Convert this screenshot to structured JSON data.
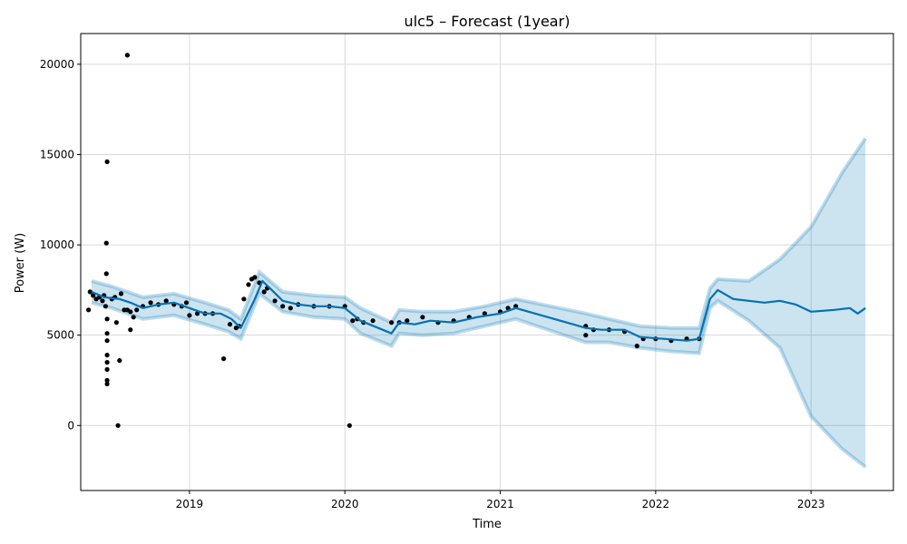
{
  "chart_data": {
    "type": "line",
    "title": "ulc5 – Forecast (1year)",
    "xlabel": "Time",
    "ylabel": "Power (W)",
    "xlim": [
      2018.3,
      2023.53
    ],
    "ylim": [
      -3600,
      21700
    ],
    "x_ticks": [
      {
        "value": 2019,
        "label": "2019"
      },
      {
        "value": 2020,
        "label": "2020"
      },
      {
        "value": 2021,
        "label": "2021"
      },
      {
        "value": 2022,
        "label": "2022"
      },
      {
        "value": 2023,
        "label": "2023"
      }
    ],
    "y_ticks": [
      {
        "value": 0,
        "label": "0"
      },
      {
        "value": 5000,
        "label": "5000"
      },
      {
        "value": 10000,
        "label": "10000"
      },
      {
        "value": 15000,
        "label": "15000"
      },
      {
        "value": 20000,
        "label": "20000"
      }
    ],
    "grid": true,
    "colors": {
      "forecast": "#0072B2",
      "interval": "#0072B2",
      "observed": "#000000",
      "grid": "#d9d9d9"
    },
    "series": [
      {
        "kind": "line",
        "points": [
          [
            2018.37,
            7400
          ],
          [
            2018.45,
            7100
          ],
          [
            2018.55,
            7000
          ],
          [
            2018.62,
            6800
          ],
          [
            2018.7,
            6500
          ],
          [
            2018.8,
            6700
          ],
          [
            2018.9,
            6800
          ],
          [
            2019.0,
            6500
          ],
          [
            2019.1,
            6200
          ],
          [
            2019.2,
            6200
          ],
          [
            2019.27,
            5900
          ],
          [
            2019.33,
            5400
          ],
          [
            2019.42,
            7000
          ],
          [
            2019.47,
            8000
          ],
          [
            2019.53,
            7500
          ],
          [
            2019.6,
            6900
          ],
          [
            2019.7,
            6700
          ],
          [
            2019.8,
            6600
          ],
          [
            2019.9,
            6600
          ],
          [
            2020.0,
            6500
          ],
          [
            2020.1,
            5800
          ],
          [
            2020.3,
            5100
          ],
          [
            2020.35,
            5700
          ],
          [
            2020.45,
            5600
          ],
          [
            2020.55,
            5800
          ],
          [
            2020.7,
            5700
          ],
          [
            2020.85,
            6000
          ],
          [
            2021.0,
            6200
          ],
          [
            2021.1,
            6500
          ],
          [
            2021.55,
            5400
          ],
          [
            2021.65,
            5300
          ],
          [
            2021.8,
            5300
          ],
          [
            2021.9,
            4900
          ],
          [
            2022.05,
            4800
          ],
          [
            2022.2,
            4700
          ],
          [
            2022.28,
            4800
          ],
          [
            2022.35,
            7000
          ],
          [
            2022.4,
            7500
          ],
          [
            2022.5,
            7000
          ],
          [
            2022.6,
            6900
          ],
          [
            2022.7,
            6800
          ],
          [
            2022.8,
            6900
          ],
          [
            2022.9,
            6700
          ],
          [
            2023.0,
            6300
          ],
          [
            2023.15,
            6400
          ],
          [
            2023.25,
            6500
          ],
          [
            2023.3,
            6200
          ],
          [
            2023.35,
            6500
          ]
        ]
      },
      {
        "kind": "interval",
        "upper": [
          [
            2018.37,
            8000
          ],
          [
            2018.5,
            7700
          ],
          [
            2018.7,
            7100
          ],
          [
            2018.9,
            7300
          ],
          [
            2019.1,
            6800
          ],
          [
            2019.25,
            6400
          ],
          [
            2019.33,
            5900
          ],
          [
            2019.45,
            8500
          ],
          [
            2019.6,
            7400
          ],
          [
            2019.8,
            7200
          ],
          [
            2020.0,
            7100
          ],
          [
            2020.1,
            6500
          ],
          [
            2020.3,
            5700
          ],
          [
            2020.35,
            6400
          ],
          [
            2020.5,
            6300
          ],
          [
            2020.7,
            6300
          ],
          [
            2020.9,
            6600
          ],
          [
            2021.1,
            7000
          ],
          [
            2021.55,
            6200
          ],
          [
            2021.7,
            5900
          ],
          [
            2021.9,
            5500
          ],
          [
            2022.1,
            5400
          ],
          [
            2022.28,
            5400
          ],
          [
            2022.35,
            7600
          ],
          [
            2022.4,
            8100
          ],
          [
            2022.6,
            8000
          ],
          [
            2022.8,
            9200
          ],
          [
            2023.0,
            11000
          ],
          [
            2023.2,
            14000
          ],
          [
            2023.35,
            15900
          ]
        ],
        "lower": [
          [
            2018.37,
            6800
          ],
          [
            2018.5,
            6500
          ],
          [
            2018.7,
            5900
          ],
          [
            2018.9,
            6100
          ],
          [
            2019.1,
            5600
          ],
          [
            2019.25,
            5200
          ],
          [
            2019.33,
            4800
          ],
          [
            2019.45,
            7300
          ],
          [
            2019.6,
            6300
          ],
          [
            2019.8,
            6000
          ],
          [
            2020.0,
            5900
          ],
          [
            2020.1,
            5100
          ],
          [
            2020.3,
            4400
          ],
          [
            2020.35,
            5100
          ],
          [
            2020.5,
            5000
          ],
          [
            2020.7,
            5100
          ],
          [
            2020.9,
            5500
          ],
          [
            2021.1,
            5900
          ],
          [
            2021.55,
            4600
          ],
          [
            2021.7,
            4600
          ],
          [
            2021.9,
            4300
          ],
          [
            2022.1,
            4100
          ],
          [
            2022.28,
            4000
          ],
          [
            2022.35,
            6500
          ],
          [
            2022.4,
            6900
          ],
          [
            2022.6,
            5800
          ],
          [
            2022.8,
            4300
          ],
          [
            2023.0,
            500
          ],
          [
            2023.2,
            -1300
          ],
          [
            2023.35,
            -2300
          ]
        ]
      },
      {
        "kind": "observed",
        "points": [
          [
            2018.35,
            6400
          ],
          [
            2018.36,
            7400
          ],
          [
            2018.38,
            7200
          ],
          [
            2018.4,
            7000
          ],
          [
            2018.42,
            7100
          ],
          [
            2018.44,
            6900
          ],
          [
            2018.45,
            7200
          ],
          [
            2018.46,
            6600
          ],
          [
            2018.465,
            8400
          ],
          [
            2018.465,
            10100
          ],
          [
            2018.47,
            14600
          ],
          [
            2018.47,
            5900
          ],
          [
            2018.47,
            5100
          ],
          [
            2018.47,
            4700
          ],
          [
            2018.47,
            3900
          ],
          [
            2018.47,
            3500
          ],
          [
            2018.47,
            3100
          ],
          [
            2018.47,
            2500
          ],
          [
            2018.47,
            2300
          ],
          [
            2018.5,
            7000
          ],
          [
            2018.52,
            7100
          ],
          [
            2018.53,
            5700
          ],
          [
            2018.54,
            0
          ],
          [
            2018.55,
            3600
          ],
          [
            2018.56,
            7300
          ],
          [
            2018.58,
            6400
          ],
          [
            2018.6,
            6400
          ],
          [
            2018.6,
            20500
          ],
          [
            2018.62,
            6300
          ],
          [
            2018.62,
            5300
          ],
          [
            2018.64,
            6000
          ],
          [
            2018.66,
            6400
          ],
          [
            2018.7,
            6600
          ],
          [
            2018.75,
            6800
          ],
          [
            2018.8,
            6700
          ],
          [
            2018.85,
            6900
          ],
          [
            2018.9,
            6700
          ],
          [
            2018.95,
            6600
          ],
          [
            2018.98,
            6800
          ],
          [
            2019.0,
            6100
          ],
          [
            2019.05,
            6200
          ],
          [
            2019.1,
            6200
          ],
          [
            2019.15,
            6200
          ],
          [
            2019.22,
            3700
          ],
          [
            2019.26,
            5600
          ],
          [
            2019.3,
            5400
          ],
          [
            2019.32,
            5500
          ],
          [
            2019.35,
            7000
          ],
          [
            2019.38,
            7800
          ],
          [
            2019.4,
            8100
          ],
          [
            2019.42,
            8200
          ],
          [
            2019.45,
            7900
          ],
          [
            2019.48,
            7400
          ],
          [
            2019.5,
            7600
          ],
          [
            2019.55,
            6900
          ],
          [
            2019.6,
            6600
          ],
          [
            2019.65,
            6500
          ],
          [
            2019.7,
            6700
          ],
          [
            2019.8,
            6600
          ],
          [
            2019.9,
            6600
          ],
          [
            2020.0,
            6600
          ],
          [
            2020.03,
            0
          ],
          [
            2020.05,
            5800
          ],
          [
            2020.08,
            5900
          ],
          [
            2020.12,
            5700
          ],
          [
            2020.18,
            5800
          ],
          [
            2020.3,
            5700
          ],
          [
            2020.35,
            5700
          ],
          [
            2020.4,
            5800
          ],
          [
            2020.5,
            6000
          ],
          [
            2020.6,
            5700
          ],
          [
            2020.7,
            5800
          ],
          [
            2020.8,
            6000
          ],
          [
            2020.9,
            6200
          ],
          [
            2021.0,
            6300
          ],
          [
            2021.05,
            6500
          ],
          [
            2021.1,
            6600
          ],
          [
            2021.55,
            5500
          ],
          [
            2021.55,
            5000
          ],
          [
            2021.6,
            5300
          ],
          [
            2021.7,
            5300
          ],
          [
            2021.8,
            5200
          ],
          [
            2021.88,
            4400
          ],
          [
            2021.92,
            4800
          ],
          [
            2022.0,
            4800
          ],
          [
            2022.1,
            4700
          ],
          [
            2022.2,
            4800
          ],
          [
            2022.28,
            4800
          ]
        ]
      }
    ]
  }
}
